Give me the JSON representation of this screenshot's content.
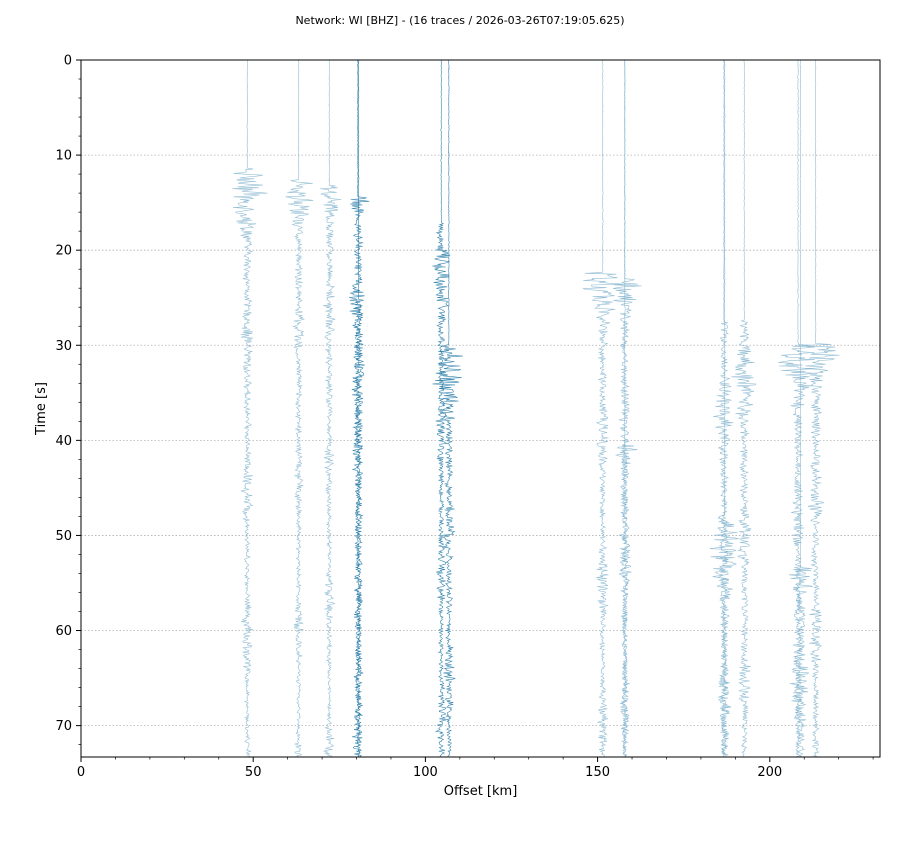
{
  "title": "Network: WI [BHZ] - (16 traces / 2026-03-26T07:19:05.625)",
  "chart_data": {
    "type": "line",
    "title": "Network: WI [BHZ] - (16 traces / 2026-03-26T07:19:05.625)",
    "xlabel": "Offset [km]",
    "ylabel": "Time [s]",
    "xlim": [
      0,
      232
    ],
    "ylim": [
      73.3,
      0
    ],
    "y_inverted": true,
    "xticks": [
      "0",
      "50",
      "100",
      "150",
      "200"
    ],
    "yticks": [
      "0",
      "10",
      "20",
      "30",
      "40",
      "50",
      "60",
      "70"
    ],
    "grid": "horizontal-dotted",
    "colors": {
      "light": "#7fb2cd",
      "dark": "#1f77a4"
    },
    "series": [
      {
        "offset_km": 48.3,
        "onset_s": 11.3,
        "peak_amp_km": 8.5,
        "color": "light"
      },
      {
        "offset_km": 63.2,
        "onset_s": 12.6,
        "peak_amp_km": 6.5,
        "color": "light"
      },
      {
        "offset_km": 72.1,
        "onset_s": 13.2,
        "peak_amp_km": 7.0,
        "color": "light"
      },
      {
        "offset_km": 80.4,
        "onset_s": 14.4,
        "peak_amp_km": 8.0,
        "color": "dark"
      },
      {
        "offset_km": 80.6,
        "onset_s": 25.2,
        "peak_amp_km": 6.5,
        "color": "dark"
      },
      {
        "offset_km": 104.6,
        "onset_s": 17.2,
        "peak_amp_km": 7.0,
        "color": "dark"
      },
      {
        "offset_km": 106.8,
        "onset_s": 30.0,
        "peak_amp_km": 8.0,
        "color": "dark"
      },
      {
        "offset_km": 151.5,
        "onset_s": 22.4,
        "peak_amp_km": 8.0,
        "color": "light"
      },
      {
        "offset_km": 157.9,
        "onset_s": 23.0,
        "peak_amp_km": 6.5,
        "color": "light"
      },
      {
        "offset_km": 157.9,
        "onset_s": 40.5,
        "peak_amp_km": 7.0,
        "color": "light"
      },
      {
        "offset_km": 186.7,
        "onset_s": 27.6,
        "peak_amp_km": 9.0,
        "color": "light"
      },
      {
        "offset_km": 192.6,
        "onset_s": 27.4,
        "peak_amp_km": 9.0,
        "color": "light"
      },
      {
        "offset_km": 186.9,
        "onset_s": 47.9,
        "peak_amp_km": 8.5,
        "color": "light"
      },
      {
        "offset_km": 208.2,
        "onset_s": 30.0,
        "peak_amp_km": 8.5,
        "color": "light"
      },
      {
        "offset_km": 213.3,
        "onset_s": 29.9,
        "peak_amp_km": 9.5,
        "color": "light"
      },
      {
        "offset_km": 208.9,
        "onset_s": 53.4,
        "peak_amp_km": 10.0,
        "color": "light"
      }
    ]
  }
}
